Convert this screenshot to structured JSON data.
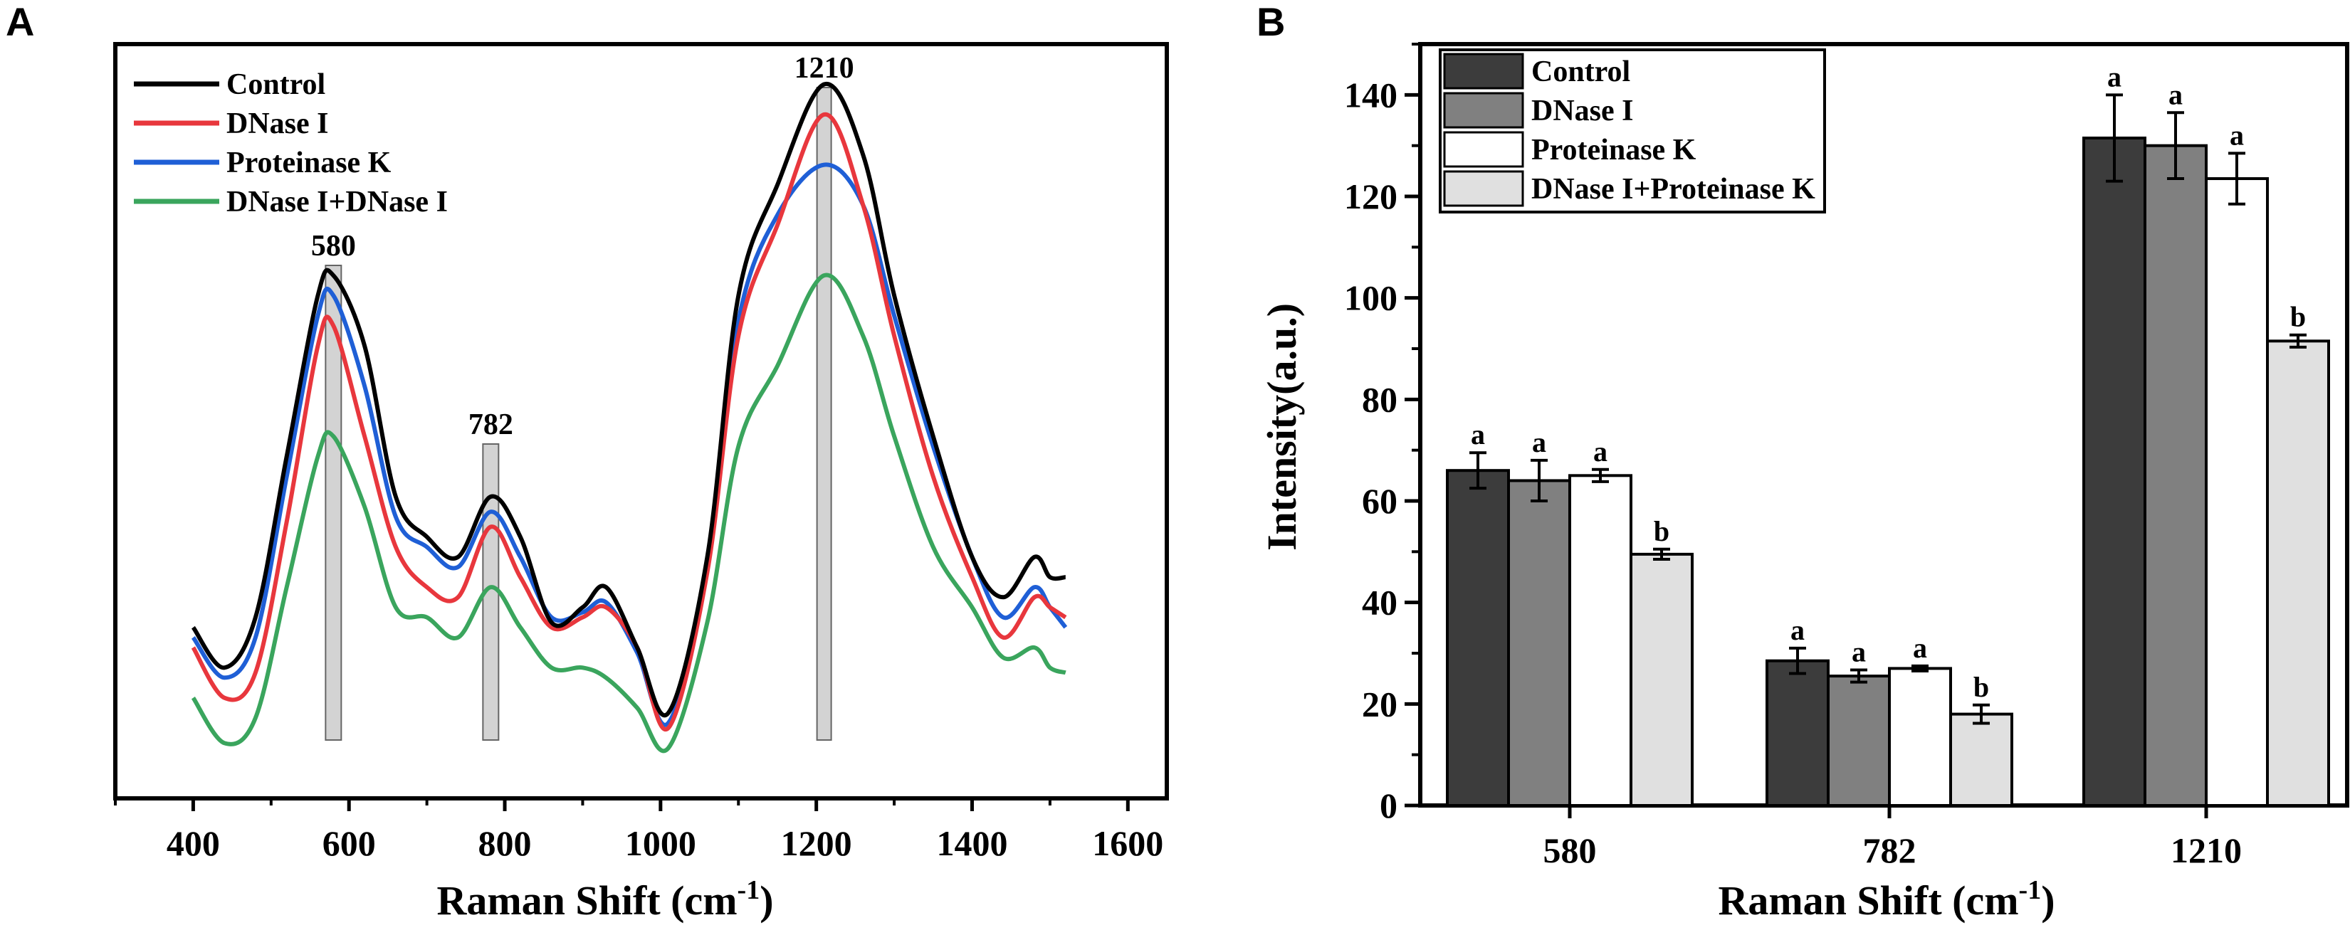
{
  "chart_data": [
    {
      "panel": "A",
      "type": "line",
      "title": "",
      "xlabel": "Raman Shift (cm",
      "xlabel_sup": "-1",
      "xlabel_close": ")",
      "ylabel": "",
      "xlim": [
        300,
        1650
      ],
      "ylim": [
        0,
        150
      ],
      "xticks": [
        400,
        600,
        800,
        1000,
        1200,
        1400,
        1600
      ],
      "legend": [
        "Control",
        "DNase I",
        "Proteinase K",
        "DNase I+DNase I"
      ],
      "highlight_peaks": [
        {
          "label": "580",
          "x": 580
        },
        {
          "label": "782",
          "x": 782
        },
        {
          "label": "1210",
          "x": 1210
        }
      ],
      "series": [
        {
          "name": "Control",
          "color": "#000000",
          "x": [
            400,
            440,
            480,
            520,
            560,
            580,
            620,
            660,
            700,
            740,
            782,
            820,
            860,
            900,
            930,
            970,
            1010,
            1060,
            1100,
            1150,
            1210,
            1260,
            1300,
            1350,
            1400,
            1440,
            1480,
            1500,
            1520
          ],
          "y": [
            34,
            26,
            36,
            68,
            100,
            104,
            90,
            60,
            52,
            48,
            60,
            52,
            35,
            38,
            42,
            30,
            17,
            48,
            100,
            122,
            142,
            128,
            100,
            72,
            48,
            40,
            48,
            44,
            44
          ]
        },
        {
          "name": "DNase I",
          "color": "#e8373d",
          "x": [
            400,
            440,
            480,
            520,
            560,
            580,
            620,
            660,
            700,
            740,
            782,
            820,
            860,
            900,
            930,
            970,
            1010,
            1060,
            1100,
            1150,
            1210,
            1260,
            1300,
            1350,
            1400,
            1440,
            1480,
            1500,
            1520
          ],
          "y": [
            30,
            20,
            25,
            55,
            90,
            94,
            72,
            50,
            42,
            40,
            54,
            44,
            34,
            36,
            38,
            30,
            14,
            45,
            92,
            114,
            136,
            118,
            92,
            64,
            44,
            32,
            40,
            38,
            36
          ]
        },
        {
          "name": "Proteinase K",
          "color": "#1f5fd6",
          "x": [
            400,
            440,
            480,
            520,
            560,
            580,
            620,
            660,
            700,
            740,
            782,
            820,
            860,
            900,
            930,
            970,
            1010,
            1060,
            1100,
            1150,
            1210,
            1260,
            1300,
            1350,
            1400,
            1440,
            1480,
            1500,
            1520
          ],
          "y": [
            32,
            24,
            32,
            64,
            96,
            100,
            82,
            56,
            50,
            46,
            57,
            48,
            36,
            37,
            39,
            29,
            15,
            46,
            95,
            116,
            126,
            118,
            96,
            70,
            48,
            36,
            42,
            38,
            34
          ]
        },
        {
          "name": "DNase I+DNase I",
          "color": "#3aa55d",
          "x": [
            400,
            440,
            480,
            520,
            560,
            580,
            620,
            660,
            700,
            740,
            782,
            820,
            860,
            900,
            930,
            970,
            1010,
            1060,
            1100,
            1150,
            1210,
            1260,
            1300,
            1350,
            1400,
            1440,
            1480,
            1500,
            1520
          ],
          "y": [
            20,
            11,
            16,
            42,
            68,
            72,
            58,
            38,
            36,
            32,
            42,
            34,
            26,
            26,
            24,
            18,
            10,
            35,
            70,
            86,
            104,
            92,
            72,
            50,
            38,
            28,
            30,
            26,
            25
          ]
        }
      ]
    },
    {
      "panel": "B",
      "type": "bar",
      "title": "",
      "xlabel": "Raman Shift (cm",
      "xlabel_sup": "-1",
      "xlabel_close": ")",
      "ylabel": "Intensity(a.u.)",
      "ylim": [
        0,
        150
      ],
      "yticks": [
        0,
        20,
        40,
        60,
        80,
        100,
        120,
        140
      ],
      "categories": [
        "580",
        "782",
        "1210"
      ],
      "series": [
        {
          "name": "Control",
          "color": "#3c3c3c",
          "values": [
            66,
            28.5,
            131.5
          ],
          "errors": [
            3.5,
            2.5,
            8.5
          ],
          "labels": [
            "a",
            "a",
            "a"
          ]
        },
        {
          "name": "DNase I",
          "color": "#808080",
          "values": [
            64,
            25.5,
            130
          ],
          "errors": [
            4,
            1.2,
            6.5
          ],
          "labels": [
            "a",
            "a",
            "a"
          ]
        },
        {
          "name": "Proteinase K",
          "color": "#ffffff",
          "values": [
            65,
            27,
            123.5
          ],
          "errors": [
            1.2,
            0.5,
            5
          ],
          "labels": [
            "a",
            "a",
            "a"
          ]
        },
        {
          "name": "DNase I+Proteinase K",
          "color": "#e0e0e0",
          "values": [
            49.5,
            18,
            91.5
          ],
          "errors": [
            1,
            1.8,
            1.2
          ],
          "labels": [
            "b",
            "b",
            "b"
          ]
        }
      ]
    }
  ],
  "panels": {
    "a_letter": "A",
    "b_letter": "B"
  }
}
